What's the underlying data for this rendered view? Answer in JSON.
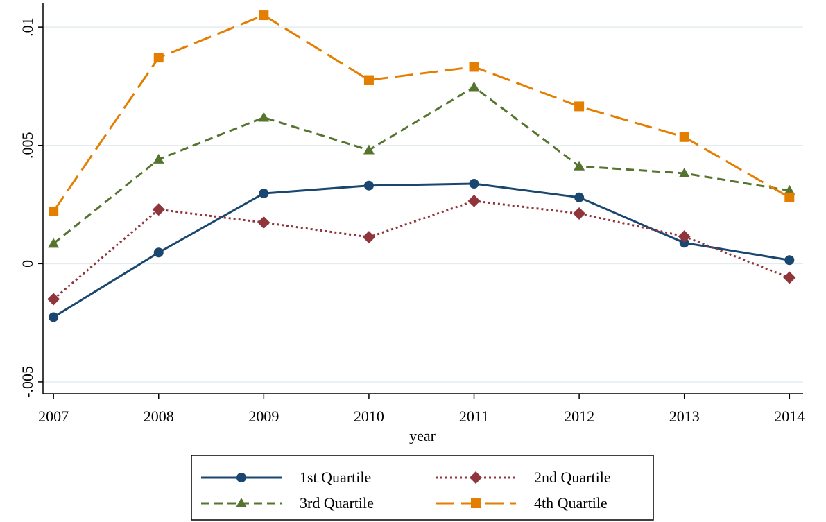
{
  "chart_data": {
    "type": "line",
    "x_label": "year",
    "x": [
      2007,
      2008,
      2009,
      2010,
      2011,
      2012,
      2013,
      2014
    ],
    "xlim": [
      2006.9,
      2014.13
    ],
    "xticks": [
      2007,
      2008,
      2009,
      2010,
      2011,
      2012,
      2013,
      2014
    ],
    "ylim": [
      -0.0055,
      0.011
    ],
    "yticks": [
      {
        "value": -0.005,
        "label": "-.005"
      },
      0,
      {
        "value": 0.005,
        "label": ".005"
      },
      {
        "value": 0.01,
        "label": ".01"
      }
    ],
    "grid": true,
    "legend": "bottom",
    "series": [
      {
        "name": "1st Quartile",
        "color": "#1a476f",
        "marker": "circle",
        "dash": "solid",
        "values": [
          -0.00226,
          0.00047,
          0.00297,
          0.0033,
          0.00338,
          0.0028,
          0.00088,
          0.00015
        ]
      },
      {
        "name": "2nd Quartile",
        "color": "#90353b",
        "marker": "diamond",
        "dash": "dotted",
        "values": [
          -0.0015,
          0.00229,
          0.00174,
          0.00112,
          0.00265,
          0.00212,
          0.00115,
          -0.00059
        ]
      },
      {
        "name": "3rd Quartile",
        "color": "#55752f",
        "marker": "triangle",
        "dash": "dashed",
        "values": [
          0.00085,
          0.00441,
          0.00618,
          0.0048,
          0.00747,
          0.00412,
          0.00382,
          0.00309
        ]
      },
      {
        "name": "4th Quartile",
        "color": "#e37e00",
        "marker": "square",
        "dash": "longdash",
        "values": [
          0.00221,
          0.00871,
          0.0105,
          0.00776,
          0.00832,
          0.00665,
          0.00535,
          0.0028
        ]
      }
    ]
  }
}
